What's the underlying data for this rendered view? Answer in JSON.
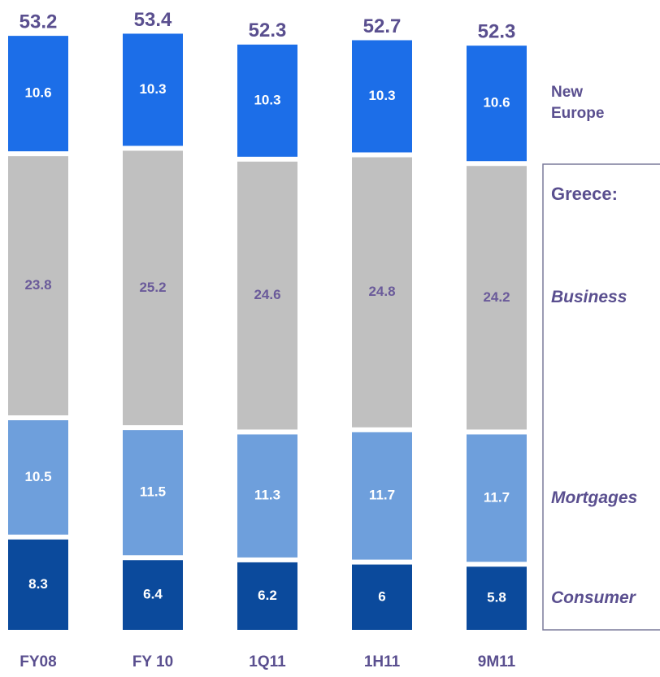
{
  "chart_data": {
    "type": "stacked_bar",
    "categories": [
      "FY08",
      "FY 10",
      "1Q11",
      "1H11",
      "9M11"
    ],
    "series": [
      {
        "name": "Consumer",
        "color": "#0b4a9c",
        "values": [
          8.3,
          6.4,
          6.2,
          6.0,
          5.8
        ]
      },
      {
        "name": "Mortgages",
        "color": "#6e9fdc",
        "values": [
          10.5,
          11.5,
          11.3,
          11.7,
          11.7
        ]
      },
      {
        "name": "Business",
        "color": "#c0c0c0",
        "values": [
          23.8,
          25.2,
          24.6,
          24.8,
          24.2
        ]
      },
      {
        "name": "New Europe",
        "color": "#1c6ee8",
        "values": [
          10.6,
          10.3,
          10.3,
          10.3,
          10.6
        ]
      }
    ],
    "totals": [
      53.2,
      53.4,
      52.3,
      52.7,
      52.3
    ],
    "group_label": "Greece:"
  }
}
